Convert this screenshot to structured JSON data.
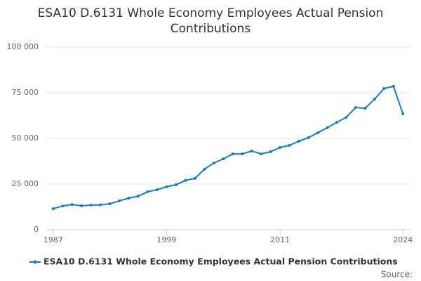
{
  "chart_data": {
    "type": "line",
    "title": "ESA10 D.6131 Whole Economy Employees Actual Pension Contributions",
    "x": [
      1987,
      1988,
      1989,
      1990,
      1991,
      1992,
      1993,
      1994,
      1995,
      1996,
      1997,
      1998,
      1999,
      2000,
      2001,
      2002,
      2003,
      2004,
      2005,
      2006,
      2007,
      2008,
      2009,
      2010,
      2011,
      2012,
      2013,
      2014,
      2015,
      2016,
      2017,
      2018,
      2019,
      2020,
      2021,
      2022,
      2023,
      2024
    ],
    "series": [
      {
        "name": "ESA10 D.6131 Whole Economy Employees Actual Pension Contributions",
        "color": "#1a7bbd",
        "values": [
          11500,
          13000,
          13800,
          13100,
          13500,
          13600,
          14200,
          15800,
          17300,
          18400,
          20800,
          21900,
          23500,
          24600,
          27000,
          28100,
          33100,
          36500,
          38800,
          41500,
          41500,
          43100,
          41500,
          42700,
          45000,
          46200,
          48500,
          50400,
          53100,
          55800,
          58800,
          61500,
          66900,
          66500,
          71500,
          77300,
          78500,
          63500
        ]
      }
    ],
    "xlim": [
      1986.2,
      2024.8
    ],
    "xticks": [
      1987,
      1999,
      2011,
      2024
    ],
    "ylim": [
      0,
      100000
    ],
    "yticks": [
      0,
      {
        "value": 25000,
        "label": "25 000"
      },
      {
        "value": 50000,
        "label": "50 000"
      },
      {
        "value": 75000,
        "label": "75 000"
      },
      {
        "value": 100000,
        "label": "100 000"
      }
    ],
    "grid": true,
    "source": "Source:"
  }
}
